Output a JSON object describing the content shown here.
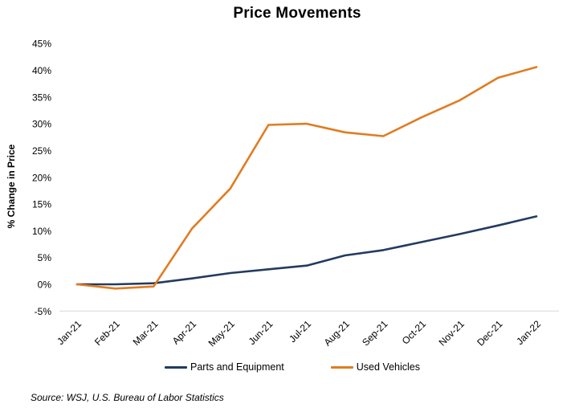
{
  "title": "Price Movements",
  "source": "Source: WSJ, U.S. Bureau of Labor Statistics",
  "colors": {
    "parts_line": "#233B5F",
    "used_line": "#E07C22",
    "axis_line": "#D9D9D9",
    "text": "#000000",
    "background": "#FFFFFF"
  },
  "chart_data": {
    "type": "line",
    "title": "Price Movements",
    "xlabel": "",
    "ylabel": "% Change in Price",
    "ylim": [
      -5,
      45
    ],
    "y_tick_step": 5,
    "y_tick_labels": [
      "45%",
      "40%",
      "35%",
      "30%",
      "25%",
      "20%",
      "15%",
      "10%",
      "5%",
      "0%",
      "-5%"
    ],
    "y_tick_values": [
      45,
      40,
      35,
      30,
      25,
      20,
      15,
      10,
      5,
      0,
      -5
    ],
    "grid": false,
    "legend_position": "bottom",
    "categories": [
      "Jan-21",
      "Feb-21",
      "Mar-21",
      "Apr-21",
      "May-21",
      "Jun-21",
      "Jul-21",
      "Aug-21",
      "Sep-21",
      "Oct-21",
      "Nov-21",
      "Dec-21",
      "Jan-22"
    ],
    "series": [
      {
        "name": "Parts and Equipment",
        "color": "#233B5F",
        "values": [
          0,
          0,
          0.2,
          1.1,
          2.1,
          2.8,
          3.5,
          5.4,
          6.4,
          7.9,
          9.4,
          11.0,
          12.7
        ]
      },
      {
        "name": "Used Vehicles",
        "color": "#E07C22",
        "values": [
          0,
          -0.8,
          -0.4,
          10.4,
          17.9,
          29.8,
          30.0,
          28.4,
          27.7,
          31.2,
          34.4,
          38.6,
          40.6
        ]
      }
    ]
  }
}
